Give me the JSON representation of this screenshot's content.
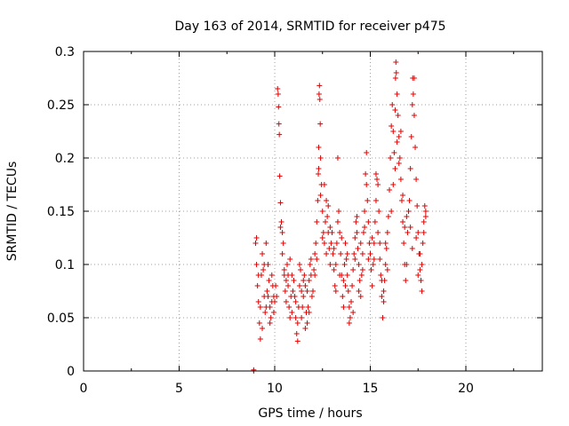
{
  "chart_data": {
    "type": "scatter",
    "title": "Day 163 of 2014, SRMTID for receiver p475",
    "xlabel": "GPS time / hours",
    "ylabel": "SRMTID / TECUs",
    "xlim": [
      0,
      24
    ],
    "ylim": [
      0,
      0.3
    ],
    "xticks": [
      0,
      5,
      10,
      15,
      20
    ],
    "yticks": [
      0,
      0.05,
      0.1,
      0.15,
      0.2,
      0.25,
      0.3
    ],
    "ytick_labels": [
      "0",
      "0.05",
      "0.1",
      "0.15",
      "0.2",
      "0.25",
      "0.3"
    ],
    "grid": true,
    "marker": "plus",
    "color": "#e00000",
    "series": [
      {
        "name": "SRMTID",
        "points": [
          [
            8.9,
            0.0
          ],
          [
            8.9,
            0.001
          ],
          [
            9.0,
            0.12
          ],
          [
            9.05,
            0.1
          ],
          [
            9.1,
            0.08
          ],
          [
            9.15,
            0.065
          ],
          [
            9.2,
            0.045
          ],
          [
            9.25,
            0.03
          ],
          [
            9.3,
            0.09
          ],
          [
            9.35,
            0.11
          ],
          [
            9.4,
            0.095
          ],
          [
            9.45,
            0.07
          ],
          [
            9.5,
            0.055
          ],
          [
            9.55,
            0.06
          ],
          [
            9.6,
            0.075
          ],
          [
            9.65,
            0.1
          ],
          [
            9.7,
            0.085
          ],
          [
            9.75,
            0.06
          ],
          [
            9.8,
            0.05
          ],
          [
            9.85,
            0.065
          ],
          [
            9.9,
            0.08
          ],
          [
            9.95,
            0.07
          ],
          [
            9.05,
            0.125
          ],
          [
            9.15,
            0.09
          ],
          [
            9.25,
            0.06
          ],
          [
            9.35,
            0.04
          ],
          [
            9.45,
            0.1
          ],
          [
            9.55,
            0.12
          ],
          [
            9.65,
            0.07
          ],
          [
            9.75,
            0.045
          ],
          [
            9.85,
            0.09
          ],
          [
            9.95,
            0.055
          ],
          [
            10.0,
            0.065
          ],
          [
            10.05,
            0.08
          ],
          [
            10.1,
            0.07
          ],
          [
            10.15,
            0.265
          ],
          [
            10.18,
            0.26
          ],
          [
            10.2,
            0.248
          ],
          [
            10.22,
            0.232
          ],
          [
            10.24,
            0.222
          ],
          [
            10.26,
            0.183
          ],
          [
            10.3,
            0.158
          ],
          [
            10.35,
            0.14
          ],
          [
            10.4,
            0.13
          ],
          [
            10.45,
            0.12
          ],
          [
            10.5,
            0.09
          ],
          [
            10.55,
            0.075
          ],
          [
            10.6,
            0.085
          ],
          [
            10.65,
            0.1
          ],
          [
            10.7,
            0.08
          ],
          [
            10.75,
            0.06
          ],
          [
            10.8,
            0.05
          ],
          [
            10.85,
            0.07
          ],
          [
            10.9,
            0.09
          ],
          [
            10.95,
            0.075
          ],
          [
            10.3,
            0.135
          ],
          [
            10.4,
            0.11
          ],
          [
            10.5,
            0.095
          ],
          [
            10.6,
            0.065
          ],
          [
            10.7,
            0.09
          ],
          [
            10.8,
            0.105
          ],
          [
            10.9,
            0.055
          ],
          [
            11.0,
            0.085
          ],
          [
            11.05,
            0.07
          ],
          [
            11.1,
            0.05
          ],
          [
            11.15,
            0.035
          ],
          [
            11.2,
            0.045
          ],
          [
            11.25,
            0.06
          ],
          [
            11.3,
            0.08
          ],
          [
            11.35,
            0.095
          ],
          [
            11.4,
            0.075
          ],
          [
            11.45,
            0.06
          ],
          [
            11.5,
            0.07
          ],
          [
            11.55,
            0.09
          ],
          [
            11.6,
            0.08
          ],
          [
            11.65,
            0.055
          ],
          [
            11.7,
            0.045
          ],
          [
            11.75,
            0.06
          ],
          [
            11.8,
            0.085
          ],
          [
            11.85,
            0.1
          ],
          [
            11.9,
            0.09
          ],
          [
            11.95,
            0.07
          ],
          [
            11.1,
            0.065
          ],
          [
            11.2,
            0.028
          ],
          [
            11.3,
            0.1
          ],
          [
            11.4,
            0.05
          ],
          [
            11.5,
            0.085
          ],
          [
            11.6,
            0.04
          ],
          [
            11.7,
            0.075
          ],
          [
            11.8,
            0.055
          ],
          [
            11.9,
            0.105
          ],
          [
            12.0,
            0.075
          ],
          [
            12.05,
            0.095
          ],
          [
            12.1,
            0.11
          ],
          [
            12.15,
            0.12
          ],
          [
            12.2,
            0.14
          ],
          [
            12.25,
            0.16
          ],
          [
            12.28,
            0.185
          ],
          [
            12.3,
            0.21
          ],
          [
            12.32,
            0.26
          ],
          [
            12.34,
            0.268
          ],
          [
            12.36,
            0.255
          ],
          [
            12.38,
            0.232
          ],
          [
            12.4,
            0.2
          ],
          [
            12.45,
            0.175
          ],
          [
            12.5,
            0.15
          ],
          [
            12.55,
            0.13
          ],
          [
            12.6,
            0.12
          ],
          [
            12.65,
            0.14
          ],
          [
            12.7,
            0.16
          ],
          [
            12.75,
            0.145
          ],
          [
            12.8,
            0.13
          ],
          [
            12.85,
            0.115
          ],
          [
            12.9,
            0.1
          ],
          [
            12.95,
            0.12
          ],
          [
            12.1,
            0.09
          ],
          [
            12.2,
            0.105
          ],
          [
            12.3,
            0.19
          ],
          [
            12.4,
            0.165
          ],
          [
            12.5,
            0.125
          ],
          [
            12.6,
            0.175
          ],
          [
            12.7,
            0.11
          ],
          [
            12.8,
            0.155
          ],
          [
            12.9,
            0.135
          ],
          [
            13.0,
            0.13
          ],
          [
            13.05,
            0.11
          ],
          [
            13.1,
            0.095
          ],
          [
            13.15,
            0.08
          ],
          [
            13.2,
            0.1
          ],
          [
            13.25,
            0.12
          ],
          [
            13.3,
            0.14
          ],
          [
            13.35,
            0.15
          ],
          [
            13.4,
            0.13
          ],
          [
            13.45,
            0.11
          ],
          [
            13.5,
            0.09
          ],
          [
            13.55,
            0.07
          ],
          [
            13.6,
            0.085
          ],
          [
            13.65,
            0.1
          ],
          [
            13.7,
            0.12
          ],
          [
            13.75,
            0.105
          ],
          [
            13.8,
            0.09
          ],
          [
            13.85,
            0.075
          ],
          [
            13.9,
            0.06
          ],
          [
            13.95,
            0.05
          ],
          [
            13.1,
            0.115
          ],
          [
            13.2,
            0.075
          ],
          [
            13.3,
            0.2
          ],
          [
            13.4,
            0.09
          ],
          [
            13.5,
            0.125
          ],
          [
            13.6,
            0.06
          ],
          [
            13.7,
            0.08
          ],
          [
            13.8,
            0.11
          ],
          [
            13.9,
            0.045
          ],
          [
            14.0,
            0.065
          ],
          [
            14.05,
            0.08
          ],
          [
            14.1,
            0.095
          ],
          [
            14.15,
            0.11
          ],
          [
            14.2,
            0.125
          ],
          [
            14.25,
            0.14
          ],
          [
            14.3,
            0.13
          ],
          [
            14.35,
            0.115
          ],
          [
            14.4,
            0.1
          ],
          [
            14.45,
            0.085
          ],
          [
            14.5,
            0.07
          ],
          [
            14.55,
            0.09
          ],
          [
            14.6,
            0.11
          ],
          [
            14.65,
            0.13
          ],
          [
            14.7,
            0.15
          ],
          [
            14.75,
            0.185
          ],
          [
            14.8,
            0.205
          ],
          [
            14.85,
            0.16
          ],
          [
            14.9,
            0.14
          ],
          [
            14.95,
            0.12
          ],
          [
            14.1,
            0.055
          ],
          [
            14.2,
            0.105
          ],
          [
            14.3,
            0.145
          ],
          [
            14.4,
            0.075
          ],
          [
            14.5,
            0.12
          ],
          [
            14.6,
            0.095
          ],
          [
            14.7,
            0.135
          ],
          [
            14.8,
            0.175
          ],
          [
            14.9,
            0.105
          ],
          [
            15.0,
            0.11
          ],
          [
            15.05,
            0.095
          ],
          [
            15.1,
            0.08
          ],
          [
            15.15,
            0.1
          ],
          [
            15.2,
            0.12
          ],
          [
            15.25,
            0.14
          ],
          [
            15.3,
            0.16
          ],
          [
            15.35,
            0.18
          ],
          [
            15.4,
            0.175
          ],
          [
            15.45,
            0.15
          ],
          [
            15.5,
            0.12
          ],
          [
            15.55,
            0.09
          ],
          [
            15.6,
            0.07
          ],
          [
            15.65,
            0.05
          ],
          [
            15.7,
            0.065
          ],
          [
            15.75,
            0.085
          ],
          [
            15.8,
            0.1
          ],
          [
            15.85,
            0.115
          ],
          [
            15.9,
            0.13
          ],
          [
            15.95,
            0.145
          ],
          [
            15.1,
            0.125
          ],
          [
            15.2,
            0.105
          ],
          [
            15.3,
            0.185
          ],
          [
            15.4,
            0.13
          ],
          [
            15.5,
            0.105
          ],
          [
            15.6,
            0.085
          ],
          [
            15.7,
            0.075
          ],
          [
            15.8,
            0.12
          ],
          [
            15.9,
            0.095
          ],
          [
            16.0,
            0.17
          ],
          [
            16.05,
            0.2
          ],
          [
            16.1,
            0.23
          ],
          [
            16.15,
            0.25
          ],
          [
            16.2,
            0.225
          ],
          [
            16.25,
            0.205
          ],
          [
            16.3,
            0.19
          ],
          [
            16.32,
            0.275
          ],
          [
            16.34,
            0.29
          ],
          [
            16.36,
            0.28
          ],
          [
            16.4,
            0.26
          ],
          [
            16.45,
            0.24
          ],
          [
            16.5,
            0.22
          ],
          [
            16.55,
            0.2
          ],
          [
            16.6,
            0.18
          ],
          [
            16.65,
            0.16
          ],
          [
            16.7,
            0.14
          ],
          [
            16.75,
            0.12
          ],
          [
            16.8,
            0.1
          ],
          [
            16.85,
            0.085
          ],
          [
            16.9,
            0.1
          ],
          [
            16.95,
            0.13
          ],
          [
            16.1,
            0.15
          ],
          [
            16.2,
            0.175
          ],
          [
            16.3,
            0.245
          ],
          [
            16.4,
            0.215
          ],
          [
            16.5,
            0.195
          ],
          [
            16.6,
            0.225
          ],
          [
            16.7,
            0.165
          ],
          [
            16.8,
            0.135
          ],
          [
            16.9,
            0.145
          ],
          [
            17.0,
            0.15
          ],
          [
            17.05,
            0.16
          ],
          [
            17.1,
            0.19
          ],
          [
            17.15,
            0.22
          ],
          [
            17.2,
            0.25
          ],
          [
            17.22,
            0.275
          ],
          [
            17.25,
            0.26
          ],
          [
            17.3,
            0.24
          ],
          [
            17.35,
            0.21
          ],
          [
            17.4,
            0.18
          ],
          [
            17.45,
            0.155
          ],
          [
            17.5,
            0.13
          ],
          [
            17.55,
            0.11
          ],
          [
            17.6,
            0.095
          ],
          [
            17.65,
            0.085
          ],
          [
            17.7,
            0.1
          ],
          [
            17.75,
            0.12
          ],
          [
            17.8,
            0.14
          ],
          [
            17.85,
            0.155
          ],
          [
            17.9,
            0.145
          ],
          [
            17.1,
            0.135
          ],
          [
            17.2,
            0.115
          ],
          [
            17.3,
            0.275
          ],
          [
            17.4,
            0.125
          ],
          [
            17.5,
            0.09
          ],
          [
            17.6,
            0.11
          ],
          [
            17.7,
            0.075
          ],
          [
            17.8,
            0.13
          ],
          [
            17.9,
            0.15
          ]
        ]
      }
    ]
  }
}
